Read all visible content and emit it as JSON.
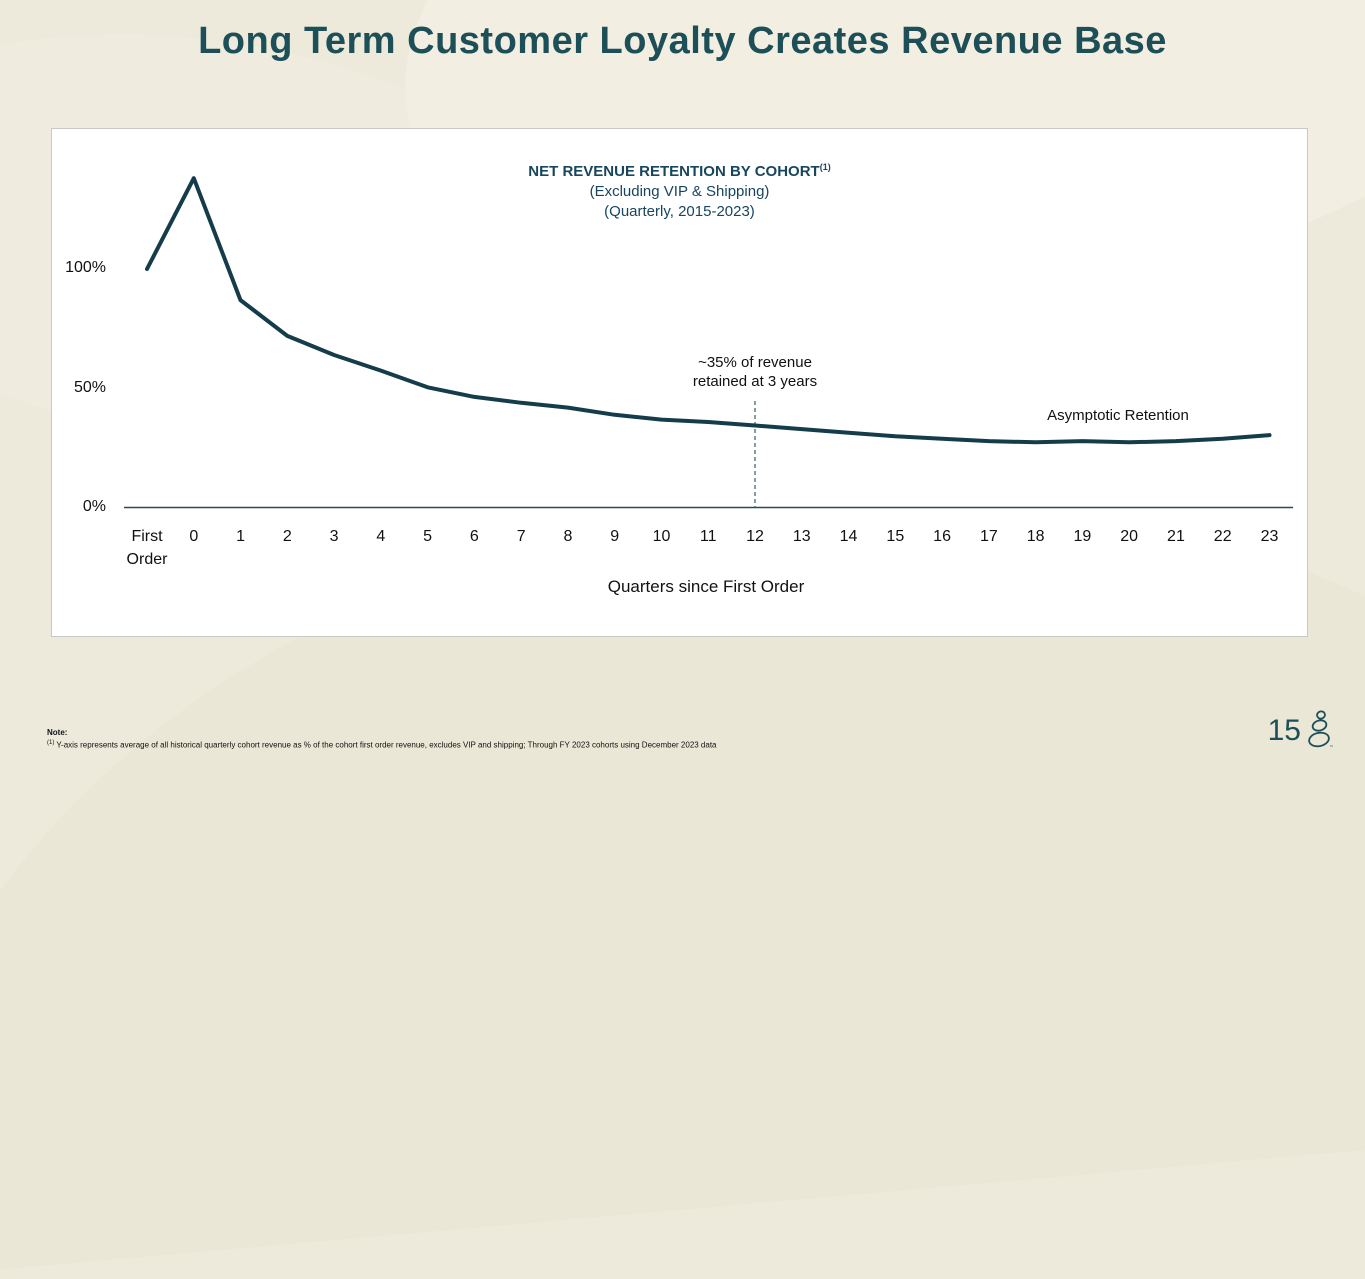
{
  "slide": {
    "title": "Long Term Customer Loyalty Creates Revenue Base",
    "page_number": "15",
    "note_label": "Note:",
    "note_superscript": "(1)",
    "note_text": " Y-axis represents average of all historical quarterly cohort revenue as % of the cohort first order revenue, excludes VIP and shipping; Through FY 2023 cohorts using December 2023 data"
  },
  "colors": {
    "background": "#edeadc",
    "title_text": "#1d4f58",
    "chart_title_text": "#17465e",
    "line_color": "#143c4a",
    "axis_color": "#2a4a52",
    "dashed_line_color": "#3a5a64",
    "panel_border": "#c8c8c5"
  },
  "chart_data": {
    "type": "line",
    "title": "NET REVENUE RETENTION BY COHORT",
    "title_superscript": "(1)",
    "subtitle1": "(Excluding VIP & Shipping)",
    "subtitle2": "(Quarterly, 2015-2023)",
    "xlabel": "Quarters since First Order",
    "ylabel": "",
    "categories": [
      "First\nOrder",
      "0",
      "1",
      "2",
      "3",
      "4",
      "5",
      "6",
      "7",
      "8",
      "9",
      "10",
      "11",
      "12",
      "13",
      "14",
      "15",
      "16",
      "17",
      "18",
      "19",
      "20",
      "21",
      "22",
      "23"
    ],
    "values": [
      100,
      138,
      87,
      72,
      64,
      57.5,
      50.5,
      46.5,
      44,
      42,
      39,
      37,
      36,
      34.5,
      33,
      31.5,
      30,
      29,
      28,
      27.5,
      28,
      27.5,
      28,
      29,
      30.5
    ],
    "y_ticks": [
      {
        "label": "100%",
        "value": 100
      },
      {
        "label": "50%",
        "value": 50
      },
      {
        "label": "0%",
        "value": 0
      }
    ],
    "ylim": [
      0,
      145
    ],
    "grid": false,
    "legend": false,
    "annotation": {
      "line1": "~35% of revenue",
      "line2": "retained at 3 years",
      "at_quarter": 12
    },
    "series_label": "Asymptotic Retention"
  }
}
